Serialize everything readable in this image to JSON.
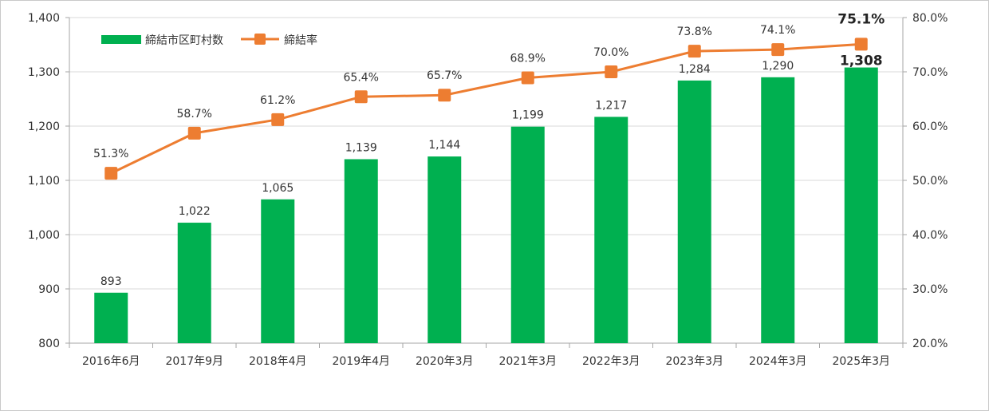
{
  "chart_data": {
    "type": "bar",
    "categories": [
      "2016年6月",
      "2017年9月",
      "2018年4月",
      "2019年4月",
      "2020年3月",
      "2021年3月",
      "2022年3月",
      "2023年3月",
      "2024年3月",
      "2025年3月"
    ],
    "series": [
      {
        "name": "締結市区町村数",
        "type": "bar",
        "axis": "left",
        "color": "#00b050",
        "values": [
          893,
          1022,
          1065,
          1139,
          1144,
          1199,
          1217,
          1284,
          1290,
          1308
        ],
        "labels": [
          "893",
          "1,022",
          "1,065",
          "1,139",
          "1,144",
          "1,199",
          "1,217",
          "1,284",
          "1,290",
          "1,308"
        ]
      },
      {
        "name": "締結率",
        "type": "line",
        "axis": "right",
        "color": "#ed7d31",
        "values": [
          51.3,
          58.7,
          61.2,
          65.4,
          65.7,
          68.9,
          70.0,
          73.8,
          74.1,
          75.1
        ],
        "labels": [
          "51.3%",
          "58.7%",
          "61.2%",
          "65.4%",
          "65.7%",
          "68.9%",
          "70.0%",
          "73.8%",
          "74.1%",
          "75.1%"
        ]
      }
    ],
    "y_left": {
      "ylim": [
        800,
        1400
      ],
      "ticks": [
        800,
        900,
        1000,
        1100,
        1200,
        1300,
        1400
      ],
      "tick_labels": [
        "800",
        "900",
        "1,000",
        "1,100",
        "1,200",
        "1,300",
        "1,400"
      ]
    },
    "y_right": {
      "ylim": [
        20,
        80
      ],
      "ticks": [
        20,
        30,
        40,
        50,
        60,
        70,
        80
      ],
      "tick_labels": [
        "20.0%",
        "30.0%",
        "40.0%",
        "50.0%",
        "60.0%",
        "70.0%",
        "80.0%"
      ]
    },
    "grid": true,
    "legend": "top-left",
    "highlight_last": true
  }
}
